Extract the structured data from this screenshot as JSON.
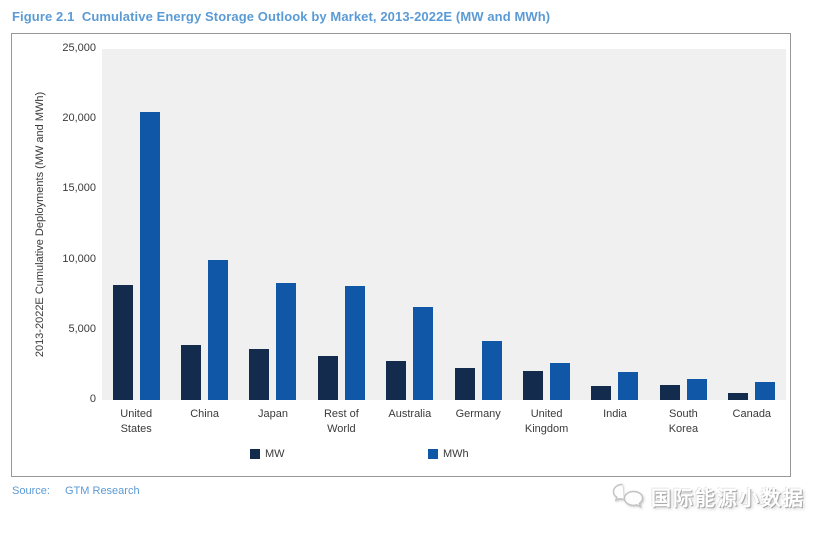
{
  "title": "Figure 2.1  Cumulative Energy Storage Outlook by Market, 2013-2022E (MW and MWh)",
  "source": {
    "label": "Source:",
    "value": "GTM Research"
  },
  "watermark": {
    "text": "国际能源小数据",
    "icon": "chat-bubbles-icon"
  },
  "colors": {
    "title_blue": "#5b9bd5",
    "mw_bar": "#132c4e",
    "mwh_bar": "#1057a8",
    "plot_background": "#f0f0f1",
    "frame_border": "#979797",
    "axis_text": "#3a3a3a"
  },
  "chart_data": {
    "type": "bar",
    "title": "Cumulative Energy Storage Outlook by Market, 2013-2022E (MW and MWh)",
    "xlabel": "",
    "ylabel": "2013-2022E Cumulative Deployments (MW and MWh)",
    "ylim": [
      0,
      25000
    ],
    "ytick_values": [
      0,
      5000,
      10000,
      15000,
      20000,
      25000
    ],
    "ytick_labels": [
      "0",
      "5,000",
      "10,000",
      "15,000",
      "20,000",
      "25,000"
    ],
    "grid": false,
    "plot_background": "#f0f0f1",
    "legend_position": "bottom",
    "categories": [
      "United States",
      "China",
      "Japan",
      "Rest of World",
      "Australia",
      "Germany",
      "United Kingdom",
      "India",
      "South Korea",
      "Canada"
    ],
    "category_label_lines": [
      [
        "United",
        "States"
      ],
      [
        "China"
      ],
      [
        "Japan"
      ],
      [
        "Rest of",
        "World"
      ],
      [
        "Australia"
      ],
      [
        "Germany"
      ],
      [
        "United",
        "Kingdom"
      ],
      [
        "India"
      ],
      [
        "South",
        "Korea"
      ],
      [
        "Canada"
      ]
    ],
    "series": [
      {
        "name": "MW",
        "color": "#132c4e",
        "values": [
          8200,
          3900,
          3600,
          3100,
          2800,
          2300,
          2100,
          1000,
          1100,
          500
        ]
      },
      {
        "name": "MWh",
        "color": "#1057a8",
        "values": [
          20500,
          10000,
          8300,
          8100,
          6600,
          4200,
          2600,
          2000,
          1500,
          1300
        ]
      }
    ]
  }
}
